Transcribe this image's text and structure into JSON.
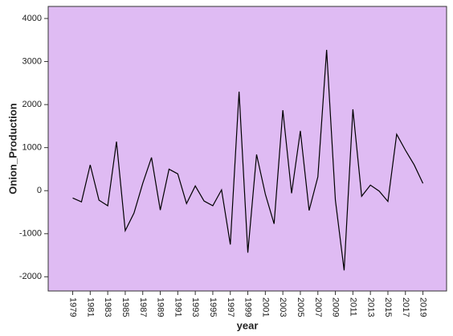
{
  "chart_data": {
    "type": "line",
    "x_label": "year",
    "y_label": "Onion_Production",
    "x": [
      1979,
      1980,
      1981,
      1982,
      1983,
      1984,
      1985,
      1986,
      1987,
      1988,
      1989,
      1990,
      1991,
      1992,
      1993,
      1994,
      1995,
      1996,
      1997,
      1998,
      1999,
      2000,
      2001,
      2002,
      2003,
      2004,
      2005,
      2006,
      2007,
      2008,
      2009,
      2010,
      2011,
      2012,
      2013,
      2014,
      2015,
      2016,
      2017,
      2018,
      2019
    ],
    "values": [
      -170,
      -260,
      600,
      -220,
      -350,
      1140,
      -930,
      -520,
      170,
      770,
      -450,
      500,
      390,
      -300,
      110,
      -240,
      -350,
      20,
      -1250,
      2300,
      -1440,
      840,
      -80,
      -770,
      1870,
      -60,
      1390,
      -460,
      320,
      3270,
      -220,
      -1850,
      1890,
      -130,
      130,
      -10,
      -250,
      1310,
      940,
      600,
      170
    ],
    "color": "#000000",
    "plot_background": "#dfbbf3",
    "xlim": [
      1976.2,
      2021.7
    ],
    "xticks": [
      1979,
      1981,
      1983,
      1985,
      1987,
      1989,
      1991,
      1993,
      1995,
      1997,
      1999,
      2001,
      2003,
      2005,
      2007,
      2009,
      2011,
      2013,
      2015,
      2017,
      2019
    ],
    "ylim": [
      -2330,
      4280
    ],
    "yticks": [
      -2000,
      -1000,
      0,
      1000,
      2000,
      3000,
      4000
    ]
  }
}
